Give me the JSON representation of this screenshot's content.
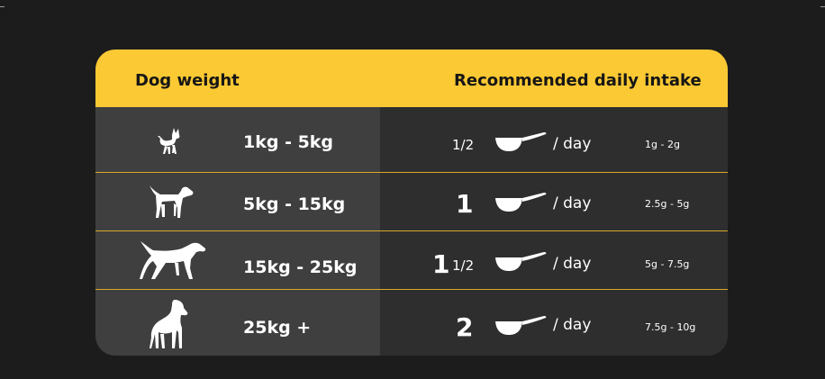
{
  "header": {
    "dog_weight_label": "Dog weight",
    "intake_label": "Recommended daily intake"
  },
  "colors": {
    "accent": "#fbc933",
    "background": "#1c1c1c",
    "left_column": "#3f3f3f",
    "right_column": "#2e2e2e",
    "divider": "#d8a92a",
    "text": "#ffffff"
  },
  "per_day_label": "/ day",
  "rows": [
    {
      "dog_icon": "small-dog-icon",
      "weight": "1kg - 5kg",
      "qty_whole": "",
      "qty_fraction": "1/2",
      "grams": "1g - 2g"
    },
    {
      "dog_icon": "beagle-icon",
      "weight": "5kg - 15kg",
      "qty_whole": "1",
      "qty_fraction": "",
      "grams": "2.5g - 5g"
    },
    {
      "dog_icon": "medium-dog-icon",
      "weight": "15kg - 25kg",
      "qty_whole": "1",
      "qty_fraction": "1/2",
      "grams": "5g - 7.5g"
    },
    {
      "dog_icon": "large-dog-icon",
      "weight": "25kg +",
      "qty_whole": "2",
      "qty_fraction": "",
      "grams": "7.5g - 10g"
    }
  ]
}
